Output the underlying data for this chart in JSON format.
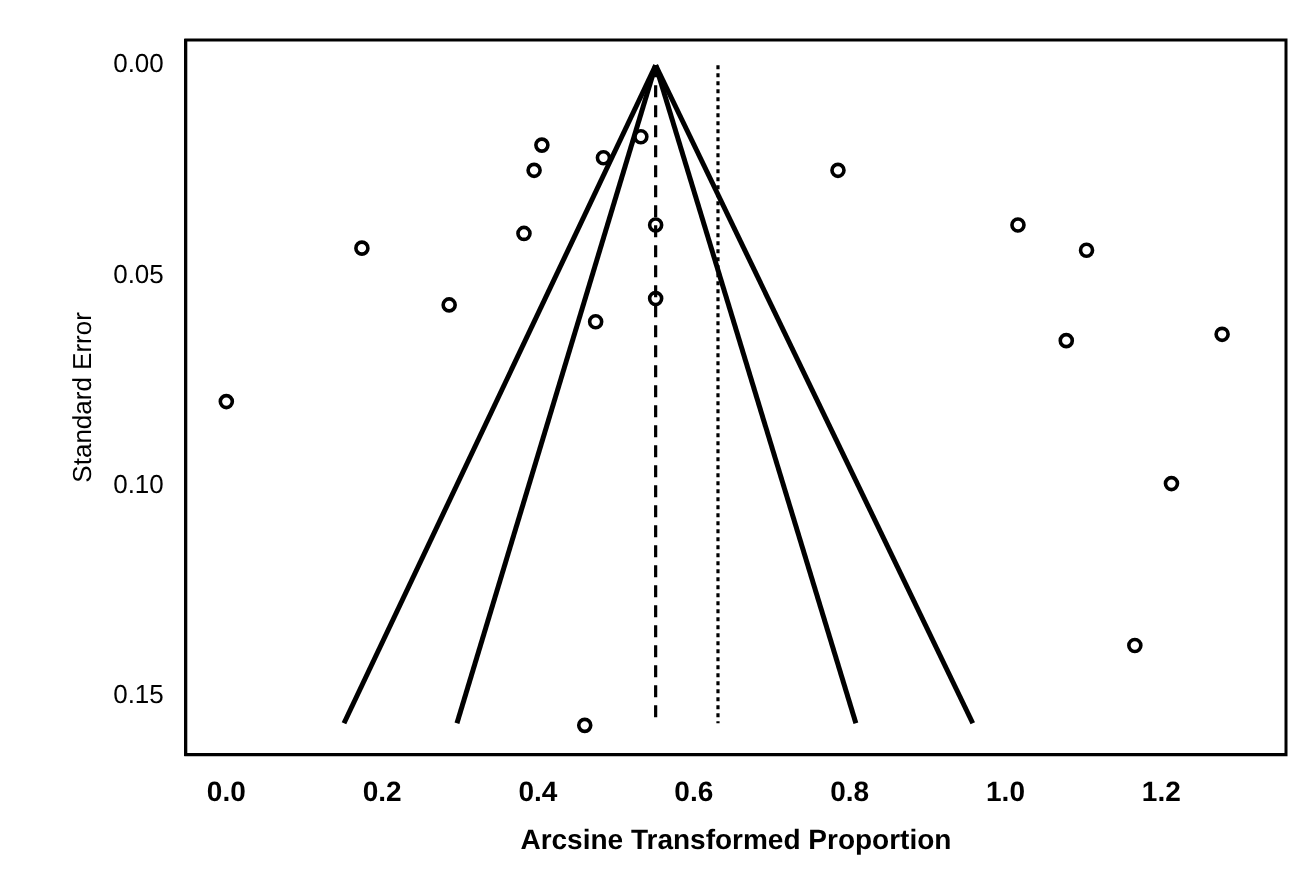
{
  "chart_data": {
    "type": "scatter",
    "xlabel": "Arcsine Transformed Proportion",
    "ylabel": "Standard Error",
    "xlim": [
      -0.052,
      1.36
    ],
    "ylim": [
      0.164,
      -0.006
    ],
    "xticks": [
      {
        "value": 0,
        "label": "0.0"
      },
      {
        "value": 0.2,
        "label": "0.2"
      },
      {
        "value": 0.4,
        "label": "0.4"
      },
      {
        "value": 0.6,
        "label": "0.6"
      },
      {
        "value": 0.8,
        "label": "0.8"
      },
      {
        "value": 1,
        "label": "1.0"
      },
      {
        "value": 1.2,
        "label": "1.2"
      }
    ],
    "yticks": [
      {
        "value": 0,
        "label": "0.00"
      },
      {
        "value": 0.05,
        "label": "0.05"
      },
      {
        "value": 0.1,
        "label": "0.10"
      },
      {
        "value": 0.15,
        "label": "0.15"
      }
    ],
    "grid": false,
    "legend": false,
    "series": [
      {
        "marker": "circle",
        "color": "#000000",
        "x": [
          0.405,
          0.395,
          0.174,
          0.382,
          0.286,
          0.484,
          0.532,
          0.474,
          0.0,
          0.551,
          0.551,
          0.785,
          1.016,
          1.104,
          1.078,
          1.278,
          1.213,
          1.166,
          0.46
        ],
        "values": [
          0.019,
          0.025,
          0.0435,
          0.04,
          0.057,
          0.022,
          0.017,
          0.061,
          0.08,
          0.038,
          0.0555,
          0.025,
          0.038,
          0.044,
          0.0655,
          0.064,
          0.0995,
          0.138,
          0.157
        ]
      },
      {
        "type": "line",
        "marker": "none",
        "color": "#000000",
        "x": [
          0.551,
          0.151
        ],
        "values": [
          0,
          0.1565
        ]
      },
      {
        "type": "line",
        "marker": "none",
        "color": "#000000",
        "x": [
          0.551,
          0.296
        ],
        "values": [
          0,
          0.1565
        ]
      },
      {
        "type": "line",
        "marker": "none",
        "color": "#000000",
        "x": [
          0.551,
          0.808
        ],
        "values": [
          0,
          0.1565
        ]
      },
      {
        "type": "line",
        "marker": "none",
        "color": "#000000",
        "x": [
          0.551,
          0.958
        ],
        "values": [
          0,
          0.1565
        ]
      }
    ],
    "ref_lines": [
      {
        "axis": "x",
        "value": 0.551,
        "color": "#000000",
        "line_style": "dashed"
      },
      {
        "axis": "x",
        "value": 0.631,
        "color": "#000000",
        "line_style": "dotted"
      }
    ]
  }
}
